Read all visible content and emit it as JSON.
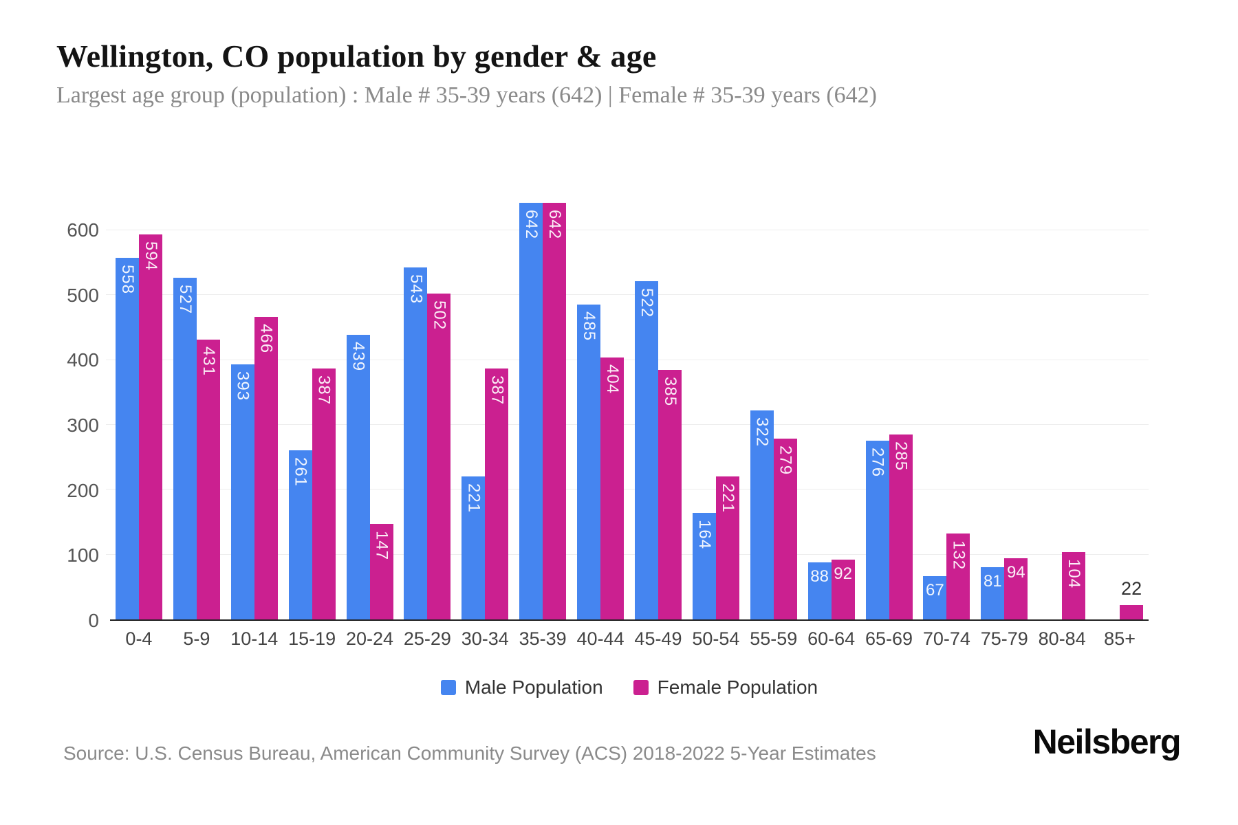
{
  "header": {
    "title": "Wellington, CO population by gender & age",
    "subtitle": "Largest age group (population) : Male # 35-39 years (642) | Female # 35-39 years (642)"
  },
  "chart_data": {
    "type": "bar",
    "title": "Wellington, CO population by gender & age",
    "categories": [
      "0-4",
      "5-9",
      "10-14",
      "15-19",
      "20-24",
      "25-29",
      "30-34",
      "35-39",
      "40-44",
      "45-49",
      "50-54",
      "55-59",
      "60-64",
      "65-69",
      "70-74",
      "75-79",
      "80-84",
      "85+"
    ],
    "series": [
      {
        "name": "Male Population",
        "color": "#4585F0",
        "values": [
          558,
          527,
          393,
          261,
          439,
          543,
          221,
          642,
          485,
          522,
          164,
          322,
          88,
          276,
          67,
          81,
          0,
          0
        ]
      },
      {
        "name": "Female Population",
        "color": "#CB2090",
        "values": [
          594,
          431,
          466,
          387,
          147,
          502,
          387,
          642,
          404,
          385,
          221,
          279,
          92,
          285,
          132,
          94,
          104,
          22
        ]
      }
    ],
    "xlabel": "",
    "ylabel": "",
    "yticks": [
      0,
      100,
      200,
      300,
      400,
      500,
      600
    ],
    "ylim": [
      0,
      690
    ],
    "grid": true,
    "legend_position": "bottom"
  },
  "footer": {
    "source": "Source: U.S. Census Bureau, American Community Survey (ACS) 2018-2022 5-Year Estimates",
    "brand": "Neilsberg"
  }
}
